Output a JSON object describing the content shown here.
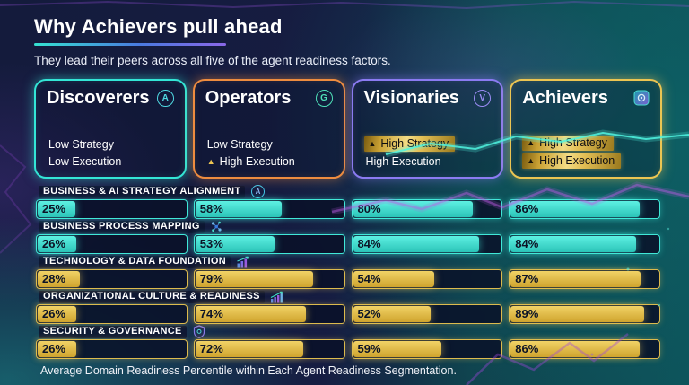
{
  "header": {
    "title": "Why Achievers pull ahead",
    "subtitle": "They lead their peers across all five of the agent readiness factors."
  },
  "ui": {
    "triangle_glyph": "▲",
    "circled_a_glyph": "A"
  },
  "colors": {
    "teal_accent": "#33e6d6",
    "orange_accent": "#ee8c3f",
    "purple_accent": "#8b7bf2",
    "gold_accent": "#ecc552",
    "teal_fill": "#3ce0d2",
    "gold_fill": "#e0b73e",
    "background_navy": "#151c3e",
    "background_teal": "#0d5159"
  },
  "segments": [
    {
      "name": "Discoverers",
      "badge": "A",
      "badge_color": "#4fd8e0",
      "accent": "#33e6d6",
      "traits": [
        {
          "text": "Low Strategy",
          "triangle": false,
          "highlight": false
        },
        {
          "text": "Low Execution",
          "triangle": false,
          "highlight": false
        }
      ]
    },
    {
      "name": "Operators",
      "badge": "G",
      "badge_color": "#4fe0b8",
      "accent": "#ee8c3f",
      "traits": [
        {
          "text": "Low Strategy",
          "triangle": false,
          "highlight": false
        },
        {
          "text": "High Execution",
          "triangle": true,
          "highlight": false
        }
      ]
    },
    {
      "name": "Visionaries",
      "badge": "V",
      "badge_color": "#9a8cf5",
      "accent": "#8b7bf2",
      "traits": [
        {
          "text": "High Strategy",
          "triangle": true,
          "highlight": true
        },
        {
          "text": "High Execution",
          "triangle": false,
          "highlight": false
        }
      ]
    },
    {
      "name": "Achievers",
      "badge": "vault",
      "badge_color": "#4adcd0",
      "accent": "#ecc552",
      "traits": [
        {
          "text": "High Strategy",
          "triangle": true,
          "highlight": true
        },
        {
          "text": "High Execution",
          "triangle": true,
          "highlight": true
        }
      ]
    }
  ],
  "factors": [
    {
      "label": "BUSINESS & AI STRATEGY ALIGNMENT",
      "icon": "circled-a-icon",
      "theme": "teal",
      "values": [
        25,
        58,
        80,
        86
      ]
    },
    {
      "label": "BUSINESS PROCESS MAPPING",
      "icon": "nodes-icon",
      "theme": "teal",
      "values": [
        26,
        53,
        84,
        84
      ]
    },
    {
      "label": "TECHNOLOGY & DATA FOUNDATION",
      "icon": "chart-icon",
      "theme": "gold",
      "values": [
        28,
        79,
        54,
        87
      ]
    },
    {
      "label": "ORGANIZATIONAL CULTURE & READINESS",
      "icon": "growth-chart-icon",
      "theme": "gold",
      "values": [
        26,
        74,
        52,
        89
      ]
    },
    {
      "label": "SECURITY & GOVERNANCE",
      "icon": "shield-icon",
      "theme": "gold",
      "values": [
        26,
        72,
        59,
        86
      ]
    }
  ],
  "footer": "Average Domain Readiness Percentile within Each Agent Readiness Segmentation.",
  "chart_data": {
    "type": "bar",
    "title": "Why Achievers pull ahead",
    "subtitle": "They lead their peers across all five of the agent readiness factors.",
    "note": "Average Domain Readiness Percentile within Each Agent Readiness Segmentation.",
    "unit": "%",
    "xlim": [
      0,
      100
    ],
    "categories": [
      "BUSINESS & AI STRATEGY ALIGNMENT",
      "BUSINESS PROCESS MAPPING",
      "TECHNOLOGY & DATA FOUNDATION",
      "ORGANIZATIONAL CULTURE & READINESS",
      "SECURITY & GOVERNANCE"
    ],
    "series": [
      {
        "name": "Discoverers",
        "values": [
          25,
          26,
          28,
          26,
          26
        ]
      },
      {
        "name": "Operators",
        "values": [
          58,
          53,
          79,
          74,
          72
        ]
      },
      {
        "name": "Visionaries",
        "values": [
          80,
          84,
          54,
          52,
          59
        ]
      },
      {
        "name": "Achievers",
        "values": [
          86,
          84,
          87,
          89,
          86
        ]
      }
    ]
  }
}
